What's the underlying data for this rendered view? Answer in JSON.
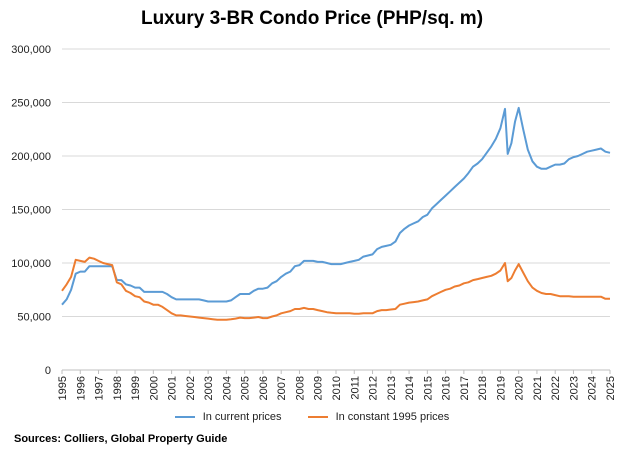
{
  "chart_data": {
    "type": "line",
    "title": "Luxury 3-BR Condo Price (PHP/sq. m)",
    "source": "Sources: Colliers, Global Property Guide",
    "xlabel": "",
    "ylabel": "",
    "xlim": [
      1995,
      2025
    ],
    "ylim": [
      0,
      300000
    ],
    "y_ticks": [
      0,
      50000,
      100000,
      150000,
      200000,
      250000,
      300000
    ],
    "y_tick_labels": [
      "0",
      "50,000",
      "100,000",
      "150,000",
      "200,000",
      "250,000",
      "300,000"
    ],
    "x_ticks": [
      1995,
      1996,
      1997,
      1998,
      1999,
      2000,
      2001,
      2002,
      2003,
      2004,
      2005,
      2006,
      2007,
      2008,
      2009,
      2010,
      2011,
      2012,
      2013,
      2014,
      2015,
      2016,
      2017,
      2018,
      2019,
      2020,
      2021,
      2022,
      2023,
      2024,
      2025
    ],
    "x_tick_labels": [
      "1995",
      "1996",
      "1997",
      "1998",
      "1999",
      "2000",
      "2001",
      "2002",
      "2003",
      "2004",
      "2005",
      "2006",
      "2007",
      "2008",
      "2009",
      "2010",
      "2011",
      "2012",
      "2013",
      "2014",
      "2015",
      "2016",
      "2017",
      "2018",
      "2019",
      "2020",
      "2021",
      "2022",
      "2023",
      "2024",
      "2025"
    ],
    "grid": "horizontal",
    "legend_position": "bottom",
    "series": [
      {
        "name": "In current prices",
        "color": "#5b9bd5",
        "points": [
          [
            1995.0,
            61000
          ],
          [
            1995.25,
            66000
          ],
          [
            1995.5,
            75000
          ],
          [
            1995.75,
            90000
          ],
          [
            1996.0,
            92000
          ],
          [
            1996.25,
            92000
          ],
          [
            1996.5,
            97000
          ],
          [
            1996.75,
            97000
          ],
          [
            1997.0,
            97000
          ],
          [
            1997.25,
            97000
          ],
          [
            1997.5,
            97000
          ],
          [
            1997.75,
            97000
          ],
          [
            1998.0,
            84000
          ],
          [
            1998.25,
            84000
          ],
          [
            1998.5,
            80000
          ],
          [
            1998.75,
            79000
          ],
          [
            1999.0,
            77000
          ],
          [
            1999.25,
            77000
          ],
          [
            1999.5,
            73000
          ],
          [
            1999.75,
            73000
          ],
          [
            2000.0,
            73000
          ],
          [
            2000.25,
            73000
          ],
          [
            2000.5,
            73000
          ],
          [
            2000.75,
            71000
          ],
          [
            2001.0,
            68000
          ],
          [
            2001.25,
            66000
          ],
          [
            2001.5,
            66000
          ],
          [
            2001.75,
            66000
          ],
          [
            2002.0,
            66000
          ],
          [
            2002.25,
            66000
          ],
          [
            2002.5,
            66000
          ],
          [
            2002.75,
            65000
          ],
          [
            2003.0,
            64000
          ],
          [
            2003.25,
            64000
          ],
          [
            2003.5,
            64000
          ],
          [
            2003.75,
            64000
          ],
          [
            2004.0,
            64000
          ],
          [
            2004.25,
            65000
          ],
          [
            2004.5,
            68000
          ],
          [
            2004.75,
            71000
          ],
          [
            2005.0,
            71000
          ],
          [
            2005.25,
            71000
          ],
          [
            2005.5,
            74000
          ],
          [
            2005.75,
            76000
          ],
          [
            2006.0,
            76000
          ],
          [
            2006.25,
            77000
          ],
          [
            2006.5,
            81000
          ],
          [
            2006.75,
            83000
          ],
          [
            2007.0,
            87000
          ],
          [
            2007.25,
            90000
          ],
          [
            2007.5,
            92000
          ],
          [
            2007.75,
            97000
          ],
          [
            2008.0,
            98000
          ],
          [
            2008.25,
            102000
          ],
          [
            2008.5,
            102000
          ],
          [
            2008.75,
            102000
          ],
          [
            2009.0,
            101000
          ],
          [
            2009.25,
            101000
          ],
          [
            2009.5,
            100000
          ],
          [
            2009.75,
            99000
          ],
          [
            2010.0,
            99000
          ],
          [
            2010.25,
            99000
          ],
          [
            2010.5,
            100000
          ],
          [
            2010.75,
            101000
          ],
          [
            2011.0,
            102000
          ],
          [
            2011.25,
            103000
          ],
          [
            2011.5,
            106000
          ],
          [
            2011.75,
            107000
          ],
          [
            2012.0,
            108000
          ],
          [
            2012.25,
            113000
          ],
          [
            2012.5,
            115000
          ],
          [
            2012.75,
            116000
          ],
          [
            2013.0,
            117000
          ],
          [
            2013.25,
            120000
          ],
          [
            2013.5,
            128000
          ],
          [
            2013.75,
            132000
          ],
          [
            2014.0,
            135000
          ],
          [
            2014.25,
            137000
          ],
          [
            2014.5,
            139000
          ],
          [
            2014.75,
            143000
          ],
          [
            2015.0,
            145000
          ],
          [
            2015.25,
            151000
          ],
          [
            2015.5,
            155000
          ],
          [
            2015.75,
            159000
          ],
          [
            2016.0,
            163000
          ],
          [
            2016.25,
            167000
          ],
          [
            2016.5,
            171000
          ],
          [
            2016.75,
            175000
          ],
          [
            2017.0,
            179000
          ],
          [
            2017.25,
            184000
          ],
          [
            2017.5,
            190000
          ],
          [
            2017.75,
            193000
          ],
          [
            2018.0,
            197000
          ],
          [
            2018.25,
            203000
          ],
          [
            2018.5,
            209000
          ],
          [
            2018.75,
            216000
          ],
          [
            2019.0,
            226000
          ],
          [
            2019.25,
            244000
          ],
          [
            2019.4,
            202000
          ],
          [
            2019.6,
            212000
          ],
          [
            2019.8,
            232000
          ],
          [
            2020.0,
            245000
          ],
          [
            2020.25,
            225000
          ],
          [
            2020.5,
            206000
          ],
          [
            2020.75,
            195000
          ],
          [
            2021.0,
            190000
          ],
          [
            2021.25,
            188000
          ],
          [
            2021.5,
            188000
          ],
          [
            2021.75,
            190000
          ],
          [
            2022.0,
            192000
          ],
          [
            2022.25,
            192000
          ],
          [
            2022.5,
            193000
          ],
          [
            2022.75,
            197000
          ],
          [
            2023.0,
            199000
          ],
          [
            2023.25,
            200000
          ],
          [
            2023.5,
            202000
          ],
          [
            2023.75,
            204000
          ],
          [
            2024.0,
            205000
          ],
          [
            2024.25,
            206000
          ],
          [
            2024.5,
            207000
          ],
          [
            2024.75,
            204000
          ],
          [
            2025.0,
            203000
          ]
        ]
      },
      {
        "name": "In constant 1995 prices",
        "color": "#ed7d31",
        "points": [
          [
            1995.0,
            74000
          ],
          [
            1995.25,
            80000
          ],
          [
            1995.5,
            87000
          ],
          [
            1995.75,
            103000
          ],
          [
            1996.0,
            102000
          ],
          [
            1996.25,
            101000
          ],
          [
            1996.5,
            105000
          ],
          [
            1996.75,
            104000
          ],
          [
            1997.0,
            102000
          ],
          [
            1997.25,
            100000
          ],
          [
            1997.5,
            99000
          ],
          [
            1997.75,
            98000
          ],
          [
            1998.0,
            82000
          ],
          [
            1998.25,
            80000
          ],
          [
            1998.5,
            74000
          ],
          [
            1998.75,
            72000
          ],
          [
            1999.0,
            69000
          ],
          [
            1999.25,
            68000
          ],
          [
            1999.5,
            64000
          ],
          [
            1999.75,
            63000
          ],
          [
            2000.0,
            61000
          ],
          [
            2000.25,
            61000
          ],
          [
            2000.5,
            59000
          ],
          [
            2000.75,
            56000
          ],
          [
            2001.0,
            53000
          ],
          [
            2001.25,
            51000
          ],
          [
            2001.5,
            51000
          ],
          [
            2001.75,
            50500
          ],
          [
            2002.0,
            50000
          ],
          [
            2002.25,
            49500
          ],
          [
            2002.5,
            49000
          ],
          [
            2002.75,
            48500
          ],
          [
            2003.0,
            48000
          ],
          [
            2003.25,
            47500
          ],
          [
            2003.5,
            47000
          ],
          [
            2003.75,
            47000
          ],
          [
            2004.0,
            47000
          ],
          [
            2004.25,
            47500
          ],
          [
            2004.5,
            48000
          ],
          [
            2004.75,
            49000
          ],
          [
            2005.0,
            48500
          ],
          [
            2005.25,
            48500
          ],
          [
            2005.5,
            49000
          ],
          [
            2005.75,
            49500
          ],
          [
            2006.0,
            48500
          ],
          [
            2006.25,
            48500
          ],
          [
            2006.5,
            50000
          ],
          [
            2006.75,
            51000
          ],
          [
            2007.0,
            53000
          ],
          [
            2007.25,
            54000
          ],
          [
            2007.5,
            55000
          ],
          [
            2007.75,
            57000
          ],
          [
            2008.0,
            57000
          ],
          [
            2008.25,
            58000
          ],
          [
            2008.5,
            57000
          ],
          [
            2008.75,
            57000
          ],
          [
            2009.0,
            56000
          ],
          [
            2009.25,
            55000
          ],
          [
            2009.5,
            54000
          ],
          [
            2009.75,
            53500
          ],
          [
            2010.0,
            53000
          ],
          [
            2010.25,
            53000
          ],
          [
            2010.5,
            53000
          ],
          [
            2010.75,
            53000
          ],
          [
            2011.0,
            52500
          ],
          [
            2011.25,
            52500
          ],
          [
            2011.5,
            53000
          ],
          [
            2011.75,
            53000
          ],
          [
            2012.0,
            53000
          ],
          [
            2012.25,
            55000
          ],
          [
            2012.5,
            56000
          ],
          [
            2012.75,
            56000
          ],
          [
            2013.0,
            56500
          ],
          [
            2013.25,
            57000
          ],
          [
            2013.5,
            61000
          ],
          [
            2013.75,
            62000
          ],
          [
            2014.0,
            63000
          ],
          [
            2014.25,
            63500
          ],
          [
            2014.5,
            64000
          ],
          [
            2014.75,
            65000
          ],
          [
            2015.0,
            66000
          ],
          [
            2015.25,
            69000
          ],
          [
            2015.5,
            71000
          ],
          [
            2015.75,
            73000
          ],
          [
            2016.0,
            75000
          ],
          [
            2016.25,
            76000
          ],
          [
            2016.5,
            78000
          ],
          [
            2016.75,
            79000
          ],
          [
            2017.0,
            81000
          ],
          [
            2017.25,
            82000
          ],
          [
            2017.5,
            84000
          ],
          [
            2017.75,
            85000
          ],
          [
            2018.0,
            86000
          ],
          [
            2018.25,
            87000
          ],
          [
            2018.5,
            88000
          ],
          [
            2018.75,
            90000
          ],
          [
            2019.0,
            93000
          ],
          [
            2019.25,
            100000
          ],
          [
            2019.4,
            83000
          ],
          [
            2019.6,
            86000
          ],
          [
            2019.8,
            93000
          ],
          [
            2020.0,
            99000
          ],
          [
            2020.25,
            91000
          ],
          [
            2020.5,
            83000
          ],
          [
            2020.75,
            77000
          ],
          [
            2021.0,
            74000
          ],
          [
            2021.25,
            72000
          ],
          [
            2021.5,
            71000
          ],
          [
            2021.75,
            71000
          ],
          [
            2022.0,
            70000
          ],
          [
            2022.25,
            69000
          ],
          [
            2022.5,
            69000
          ],
          [
            2022.75,
            69000
          ],
          [
            2023.0,
            68500
          ],
          [
            2023.25,
            68500
          ],
          [
            2023.5,
            68500
          ],
          [
            2023.75,
            68500
          ],
          [
            2024.0,
            68500
          ],
          [
            2024.25,
            68500
          ],
          [
            2024.5,
            68500
          ],
          [
            2024.75,
            66500
          ],
          [
            2025.0,
            66500
          ]
        ]
      }
    ]
  }
}
